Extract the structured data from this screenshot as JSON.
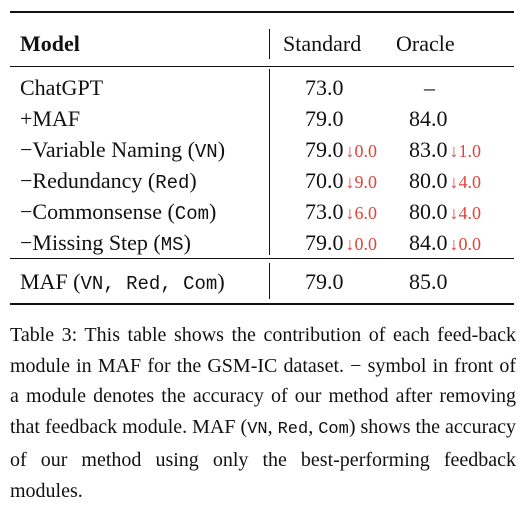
{
  "table": {
    "headers": {
      "model": "Model",
      "standard": "Standard",
      "oracle": "Oracle"
    },
    "rows": [
      {
        "model": "ChatGPT",
        "standard": "73.0",
        "oracle": "–"
      },
      {
        "model": "+MAF",
        "standard": "79.0",
        "oracle": "84.0"
      },
      {
        "model": "−Variable Naming (",
        "code": "VN",
        "close": ")",
        "standard": "79.0",
        "standard_delta": "↓0.0",
        "oracle": "83.0",
        "oracle_delta": "↓1.0"
      },
      {
        "model": "−Redundancy (",
        "code": "Red",
        "close": ")",
        "standard": "70.0",
        "standard_delta": "↓9.0",
        "oracle": "80.0",
        "oracle_delta": "↓4.0"
      },
      {
        "model": "−Commonsense (",
        "code": "Com",
        "close": ")",
        "standard": "73.0",
        "standard_delta": "↓6.0",
        "oracle": "80.0",
        "oracle_delta": "↓4.0"
      },
      {
        "model": "−Missing Step (",
        "code": "MS",
        "close": ")",
        "standard": "79.0",
        "standard_delta": "↓0.0",
        "oracle": "84.0",
        "oracle_delta": "↓0.0"
      }
    ],
    "final_row": {
      "model": "MAF (",
      "code": "VN, Red, Com",
      "close": ")",
      "standard": "79.0",
      "oracle": "85.0"
    }
  },
  "caption": {
    "p1": "Table 3: This table shows the contribution of each feed-back module in MAF for the GSM-IC dataset. − symbol in front of a module denotes the accuracy of our method after removing that feedback module. MAF (",
    "c1": "VN",
    "p2": ", ",
    "c2": "Red",
    "p3": ", ",
    "c3": "Com",
    "p4": ") shows the accuracy of our method using only the best-performing feedback modules."
  },
  "colors": {
    "delta": "#e0443a",
    "text": "#111111"
  }
}
